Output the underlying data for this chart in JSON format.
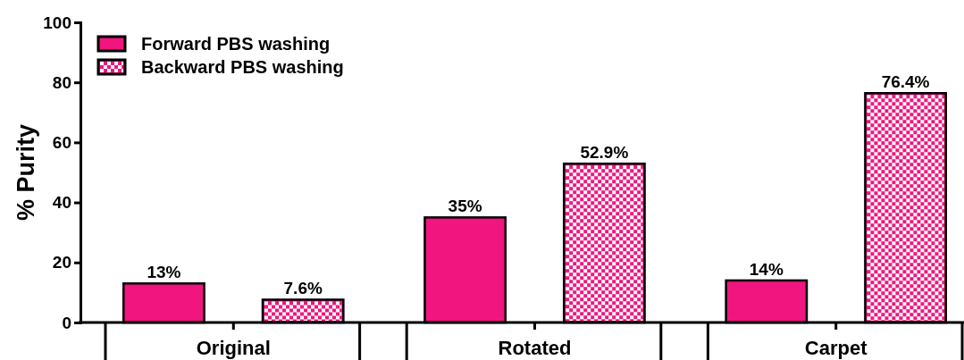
{
  "chart_data": {
    "type": "bar",
    "ylabel": "% Purity",
    "categories": [
      "Original",
      "Rotated",
      "Carpet"
    ],
    "series": [
      {
        "name": "Forward PBS washing",
        "color": "#f0157f",
        "values": [
          13,
          35,
          14
        ],
        "value_labels": [
          "13%",
          "35%",
          "14%"
        ]
      },
      {
        "name": "Backward PBS washing",
        "color": "#f0157f",
        "values": [
          7.6,
          52.9,
          76.4
        ],
        "value_labels": [
          "7.6%",
          "52.9%",
          "76.4%"
        ]
      }
    ],
    "ylim": [
      0,
      100
    ],
    "yticks": [
      0,
      20,
      40,
      60,
      80,
      100
    ],
    "grid": false,
    "legend": "top left"
  }
}
